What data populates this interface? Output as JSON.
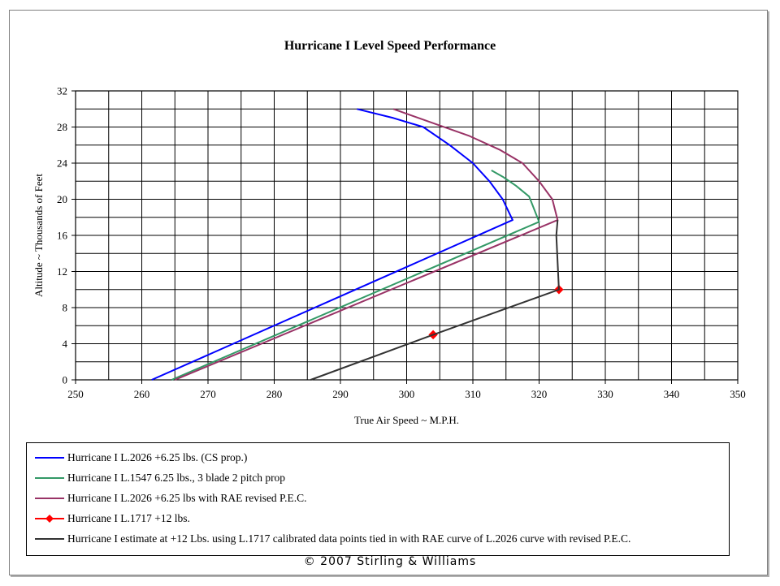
{
  "chart_data": {
    "type": "line",
    "title": "Hurricane I Level Speed Performance",
    "xlabel": "True Air Speed ~ M.P.H.",
    "ylabel": "Altitude ~ Thousands of Feet",
    "xlim": [
      250,
      350
    ],
    "ylim": [
      0,
      32
    ],
    "xticks": [
      250,
      260,
      270,
      280,
      290,
      300,
      310,
      320,
      330,
      340,
      350
    ],
    "yticks": [
      0,
      4,
      8,
      12,
      16,
      20,
      24,
      28,
      32
    ],
    "x_minor_step": 5,
    "y_minor_step": 2,
    "grid": true,
    "legend_position": "bottom",
    "series": [
      {
        "name": "Hurricane I L.2026 +6.25 lbs. (CS prop.)",
        "color": "#0000ff",
        "marker": "none",
        "x": [
          261.5,
          316,
          314.5,
          312.5,
          310,
          306.5,
          302.5,
          298,
          292.5
        ],
        "y": [
          0,
          17.7,
          20,
          22,
          24,
          26,
          28,
          29,
          30
        ]
      },
      {
        "name": "Hurricane I L.1547 6.25 lbs., 3 blade 2 pitch prop",
        "color": "#339966",
        "marker": "none",
        "x": [
          264.5,
          320,
          318.5,
          316.5,
          314.5,
          312.8
        ],
        "y": [
          0,
          17.5,
          20.3,
          21.5,
          22.5,
          23.2
        ]
      },
      {
        "name": "Hurricane I L.2026 +6.25 lbs with RAE revised P.E.C.",
        "color": "#993366",
        "marker": "none",
        "x": [
          265,
          322.8,
          322,
          320,
          317.5,
          314,
          309.5,
          304.5,
          298
        ],
        "y": [
          0,
          17.7,
          20,
          22,
          24,
          25.5,
          27,
          28.3,
          30
        ]
      },
      {
        "name": "Hurricane I L.1717 +12 lbs.",
        "color": "#ff0000",
        "marker": "diamond",
        "line": false,
        "x": [
          304,
          323
        ],
        "y": [
          5,
          10
        ]
      },
      {
        "name": "Hurricane I estimate at +12 Lbs. using L.1717 calibrated data points tied in with RAE curve of L.2026 curve with revised P.E.C.",
        "color": "#333333",
        "marker": "none",
        "x": [
          285.5,
          304,
          323,
          322.6,
          322.8
        ],
        "y": [
          0,
          5,
          10,
          16,
          17.7
        ]
      }
    ]
  },
  "copyright": "© 2007 Stirling & Williams"
}
